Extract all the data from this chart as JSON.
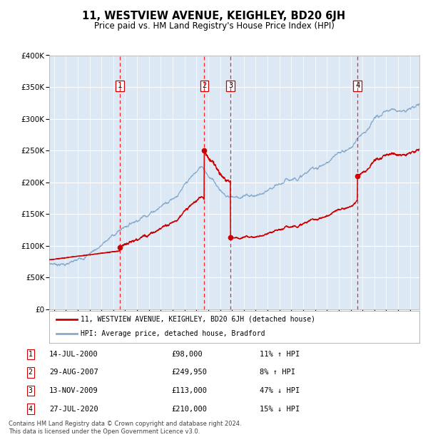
{
  "title": "11, WESTVIEW AVENUE, KEIGHLEY, BD20 6JH",
  "subtitle": "Price paid vs. HM Land Registry's House Price Index (HPI)",
  "ylim": [
    0,
    400000
  ],
  "yticks": [
    0,
    50000,
    100000,
    150000,
    200000,
    250000,
    300000,
    350000,
    400000
  ],
  "ytick_labels": [
    "£0",
    "£50K",
    "£100K",
    "£150K",
    "£200K",
    "£250K",
    "£300K",
    "£350K",
    "£400K"
  ],
  "xlim_start": 1994.6,
  "xlim_end": 2025.8,
  "background_color": "#dce9f5",
  "sale_color": "#cc0000",
  "hpi_color": "#88aacc",
  "sale_label": "11, WESTVIEW AVENUE, KEIGHLEY, BD20 6JH (detached house)",
  "hpi_label": "HPI: Average price, detached house, Bradford",
  "transactions": [
    {
      "num": 1,
      "date_str": "14-JUL-2000",
      "price": 98000,
      "pct": "11%",
      "dir": "↑",
      "x_year": 2000.54
    },
    {
      "num": 2,
      "date_str": "29-AUG-2007",
      "price": 249950,
      "pct": "8%",
      "dir": "↑",
      "x_year": 2007.66
    },
    {
      "num": 3,
      "date_str": "13-NOV-2009",
      "price": 113000,
      "pct": "47%",
      "dir": "↓",
      "x_year": 2009.87
    },
    {
      "num": 4,
      "date_str": "27-JUL-2020",
      "price": 210000,
      "pct": "15%",
      "dir": "↓",
      "x_year": 2020.58
    }
  ],
  "footnote1": "Contains HM Land Registry data © Crown copyright and database right 2024.",
  "footnote2": "This data is licensed under the Open Government Licence v3.0."
}
